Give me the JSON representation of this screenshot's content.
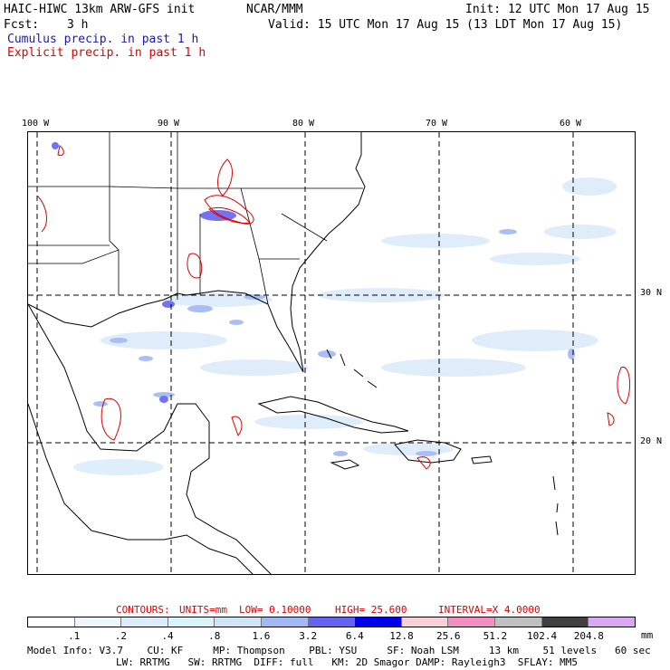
{
  "header": {
    "model_title": "HAIC-HIWC 13km ARW-GFS init",
    "org": "NCAR/MMM",
    "init": "Init: 12 UTC Mon 17 Aug 15",
    "fcst_label": "Fcst:",
    "fcst_value": "3 h",
    "valid": "Valid: 15 UTC Mon 17 Aug 15 (13 LDT Mon 17 Aug 15)",
    "legend_cumulus": "Cumulus precip. in past 1 h",
    "legend_explicit": "Explicit precip. in past 1 h"
  },
  "colors": {
    "cumulus_text": "#1a1aa6",
    "explicit_text": "#dd0000",
    "explicit_contour": "#e00000",
    "coast": "#000000",
    "grid": "#000000"
  },
  "map": {
    "lon_labels": [
      "100 W",
      "90 W",
      "80 W",
      "70 W",
      "60 W"
    ],
    "lat_labels": [
      "30 N",
      "20 N"
    ]
  },
  "contours": {
    "label": "CONTOURS:",
    "units": "UNITS=mm",
    "low": "LOW= 0.10000",
    "high": "HIGH= 25.600",
    "interval": "INTERVAL=X 4.0000"
  },
  "colorbar": {
    "unit": "mm",
    "levels": [
      ".1",
      ".2",
      ".4",
      ".8",
      "1.6",
      "3.2",
      "6.4",
      "12.8",
      "25.6",
      "51.2",
      "102.4",
      "204.8"
    ],
    "swatches": [
      "#ffffff",
      "#eef6fc",
      "#dcecfb",
      "#d8f4f8",
      "#d0e4f8",
      "#a0b8f4",
      "#6464f0",
      "#0000f0",
      "#f8d0d8",
      "#f090c0",
      "#c0c0c0",
      "#404040",
      "#d8a8f0"
    ]
  },
  "model_info": {
    "line1": "Model Info: V3.7    CU: KF     MP: Thompson    PBL: YSU     SF: Noah LSM     13 km    51 levels   60 sec",
    "line2": "LW: RRTMG   SW: RRTMG  DIFF: full   KM: 2D Smagor DAMP: Rayleigh3  SFLAY: MM5"
  }
}
